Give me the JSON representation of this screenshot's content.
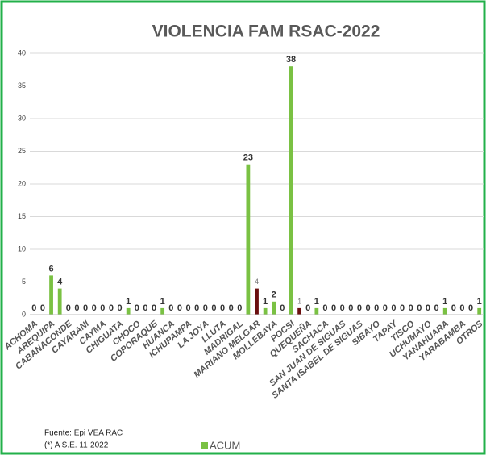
{
  "chart_data": {
    "type": "bar",
    "title": "VIOLENCIA FAM RSAC-2022",
    "categories": [
      "ACHOMA",
      null,
      "AREQUIPA",
      null,
      "CABANACONDE",
      null,
      "CAYARANI",
      null,
      "CAYMA",
      null,
      "CHIGUATA",
      null,
      "CHOCO",
      null,
      "COPORAQUE",
      null,
      "HUANCA",
      null,
      "ICHUPAMPA",
      null,
      "LA JOYA",
      null,
      "LLUTA",
      null,
      "MADRIGAL",
      null,
      "MARIANO MELGAR",
      null,
      "MOLLEBAYA",
      null,
      "POCSI",
      null,
      "QUEQUEÑA",
      null,
      "SACHACA",
      null,
      "SAN JUAN DE SIGUAS",
      null,
      "SANTA ISABEL DE SIGUAS",
      null,
      "SIBAYO",
      null,
      "TAPAY",
      null,
      "TISCO",
      null,
      "UCHUMAYO",
      null,
      "YANAHUARA",
      null,
      "YARABAMBA",
      null,
      "OTROS"
    ],
    "series": [
      {
        "name": "ACUM",
        "color": "#7ac143",
        "values": [
          0,
          0,
          6,
          4,
          0,
          0,
          0,
          0,
          0,
          0,
          0,
          1,
          0,
          0,
          0,
          1,
          0,
          0,
          0,
          0,
          0,
          0,
          0,
          0,
          0,
          23,
          4,
          1,
          2,
          0,
          38,
          1,
          0,
          1,
          0,
          0,
          0,
          0,
          0,
          0,
          0,
          0,
          0,
          0,
          0,
          0,
          0,
          0,
          1,
          0,
          0,
          0,
          1
        ],
        "colors": [
          "#7ac143",
          "#7ac143",
          "#7ac143",
          "#7ac143",
          "#7ac143",
          "#7ac143",
          "#7ac143",
          "#7ac143",
          "#7ac143",
          "#7ac143",
          "#7ac143",
          "#7ac143",
          "#7ac143",
          "#7ac143",
          "#7ac143",
          "#7ac143",
          "#7ac143",
          "#7ac143",
          "#7ac143",
          "#7ac143",
          "#7ac143",
          "#7ac143",
          "#7ac143",
          "#7ac143",
          "#7ac143",
          "#7ac143",
          "#6b0f0f",
          "#7ac143",
          "#7ac143",
          "#7ac143",
          "#7ac143",
          "#6b0f0f",
          "#7ac143",
          "#7ac143",
          "#7ac143",
          "#7ac143",
          "#7ac143",
          "#7ac143",
          "#7ac143",
          "#7ac143",
          "#7ac143",
          "#7ac143",
          "#7ac143",
          "#7ac143",
          "#7ac143",
          "#7ac143",
          "#7ac143",
          "#7ac143",
          "#7ac143",
          "#7ac143",
          "#7ac143",
          "#7ac143",
          "#7ac143"
        ]
      }
    ],
    "ylim": [
      0,
      40
    ],
    "yticks": [
      0,
      5,
      10,
      15,
      20,
      25,
      30,
      35,
      40
    ],
    "grid": true,
    "footnotes": [
      "Fuente: Epi VEA RAC",
      "(*) A S.E. 11-2022"
    ]
  }
}
